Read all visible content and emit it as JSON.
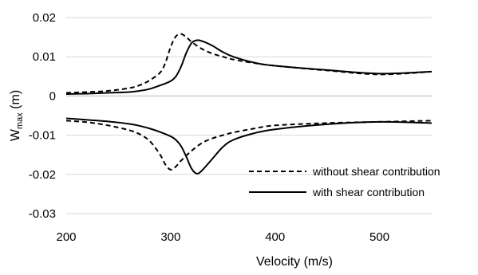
{
  "chart_data": {
    "type": "line",
    "xlabel": "Velocity (m/s)",
    "ylabel_main": "W",
    "ylabel_sub": "max",
    "ylabel_unit": " (m)",
    "xlim": [
      200,
      550
    ],
    "ylim": [
      -0.03,
      0.02
    ],
    "xticks": [
      200,
      300,
      400,
      500
    ],
    "xtick_labels": [
      "200",
      "300",
      "400",
      "500"
    ],
    "yticks": [
      0.02,
      0.01,
      0,
      -0.01,
      -0.02,
      -0.03
    ],
    "ytick_labels": [
      "0.02",
      "0.01",
      "0",
      "-0.01",
      "-0.02",
      "-0.03"
    ],
    "grid": "horizontal",
    "legend_position": "lower-right",
    "series": [
      {
        "name": "without shear contribution",
        "style": "dashed",
        "color": "#000000",
        "branches": [
          {
            "x": [
              200,
              220,
              240,
              260,
              270,
              280,
              290,
              295,
              300,
              305,
              310,
              315,
              320,
              330,
              340,
              350,
              360,
              380,
              400,
              450,
              500,
              550
            ],
            "y": [
              0.0008,
              0.001,
              0.0013,
              0.002,
              0.0027,
              0.004,
              0.006,
              0.0085,
              0.0125,
              0.0152,
              0.0158,
              0.015,
              0.0138,
              0.012,
              0.0108,
              0.01,
              0.0093,
              0.0084,
              0.0077,
              0.0065,
              0.0055,
              0.0062
            ]
          },
          {
            "x": [
              200,
              220,
              240,
              260,
              270,
              280,
              290,
              295,
              300,
              305,
              310,
              320,
              330,
              340,
              350,
              360,
              380,
              400,
              450,
              500,
              550
            ],
            "y": [
              -0.0063,
              -0.0067,
              -0.0075,
              -0.0087,
              -0.0097,
              -0.0115,
              -0.015,
              -0.0175,
              -0.0188,
              -0.018,
              -0.0165,
              -0.014,
              -0.012,
              -0.0108,
              -0.01,
              -0.0093,
              -0.0083,
              -0.0075,
              -0.0069,
              -0.0066,
              -0.0063
            ]
          }
        ]
      },
      {
        "name": "with shear contribution",
        "style": "solid",
        "color": "#000000",
        "branches": [
          {
            "x": [
              200,
              220,
              240,
              260,
              270,
              280,
              290,
              300,
              305,
              310,
              315,
              320,
              325,
              330,
              340,
              350,
              360,
              380,
              400,
              450,
              500,
              550
            ],
            "y": [
              0.0005,
              0.0006,
              0.0008,
              0.001,
              0.0013,
              0.0018,
              0.0027,
              0.0038,
              0.005,
              0.0075,
              0.011,
              0.0135,
              0.0142,
              0.014,
              0.0128,
              0.0112,
              0.01,
              0.0085,
              0.0077,
              0.0066,
              0.0057,
              0.0062
            ]
          },
          {
            "x": [
              200,
              220,
              240,
              260,
              270,
              280,
              290,
              300,
              305,
              310,
              315,
              320,
              325,
              330,
              340,
              350,
              360,
              380,
              400,
              450,
              500,
              550
            ],
            "y": [
              -0.0057,
              -0.0061,
              -0.0065,
              -0.0071,
              -0.0076,
              -0.0083,
              -0.0092,
              -0.0103,
              -0.0112,
              -0.0128,
              -0.0155,
              -0.0185,
              -0.0198,
              -0.019,
              -0.016,
              -0.013,
              -0.0112,
              -0.0095,
              -0.0085,
              -0.0072,
              -0.0066,
              -0.0069
            ]
          }
        ]
      }
    ]
  }
}
